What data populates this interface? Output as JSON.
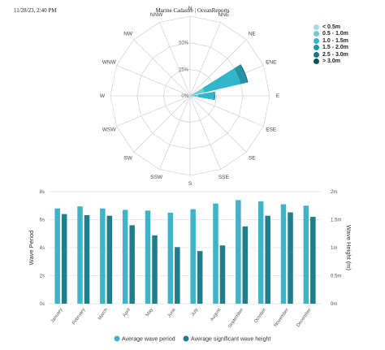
{
  "header": {
    "left": "11/28/23, 2:40 PM",
    "center": "Marine Cadastre | OceanReports"
  },
  "chart_data": [
    {
      "type": "wind-rose",
      "directions": [
        "N",
        "NNE",
        "NE",
        "ENE",
        "E",
        "ESE",
        "SE",
        "SSE",
        "S",
        "SSW",
        "SW",
        "WSW",
        "W",
        "WNW",
        "NW",
        "NNW"
      ],
      "radial_ticks": [
        "0%",
        "25%",
        "50%"
      ],
      "radial_max": 60,
      "legend": [
        {
          "label": "< 0.5m",
          "color": "#a6dbe2"
        },
        {
          "label": "0.5 - 1.0m",
          "color": "#6ccad8"
        },
        {
          "label": "1.0 - 1.5m",
          "color": "#33b5cc"
        },
        {
          "label": "1.5 - 2.0m",
          "color": "#2593a6"
        },
        {
          "label": "2.5 - 3.0m",
          "color": "#1b7383"
        },
        {
          "label": "> 3.0m",
          "color": "#114e5c"
        }
      ],
      "series": [
        {
          "name": "< 0.5m",
          "values": [
            0,
            0,
            0,
            1,
            1,
            0,
            0,
            0,
            0,
            0,
            0,
            0,
            0,
            0,
            0,
            0
          ]
        },
        {
          "name": "0.5 - 1.0m",
          "values": [
            0,
            0,
            0,
            10,
            5,
            0,
            0,
            0,
            0,
            0,
            0,
            0,
            0,
            0,
            0,
            0
          ]
        },
        {
          "name": "1.0 - 1.5m",
          "values": [
            0,
            0,
            0,
            28,
            12,
            0,
            0,
            0,
            0,
            0,
            0,
            0,
            0,
            0,
            0,
            0
          ]
        },
        {
          "name": "1.5 - 2.0m",
          "values": [
            0,
            0,
            0,
            5,
            1,
            0,
            0,
            0,
            0,
            0,
            0,
            0,
            0,
            0,
            0,
            0
          ]
        },
        {
          "name": "2.5 - 3.0m",
          "values": [
            0,
            0,
            0,
            1,
            0,
            0,
            0,
            0,
            0,
            0,
            0,
            0,
            0,
            0,
            0,
            0
          ]
        },
        {
          "name": "> 3.0m",
          "values": [
            0,
            0,
            0,
            0,
            0,
            0,
            0,
            0,
            0,
            0,
            0,
            0,
            0,
            0,
            0,
            0
          ]
        }
      ]
    },
    {
      "type": "bar",
      "categories": [
        "January",
        "February",
        "March",
        "April",
        "May",
        "June",
        "July",
        "August",
        "September",
        "October",
        "November",
        "December"
      ],
      "ylabel": "Wave Period",
      "ylabel_right": "Wave Height (m)",
      "ylim": [
        0,
        8
      ],
      "yticks": [
        "0s",
        "2s",
        "4s",
        "6s",
        "8s"
      ],
      "ylim_right": [
        0,
        2
      ],
      "yticks_right": [
        "0m",
        "0.5m",
        "1m",
        "1.5m",
        "2m"
      ],
      "legend_position": "bottom",
      "series": [
        {
          "name": "Average wave period",
          "axis": "left",
          "color": "#3fb3c7",
          "values": [
            6.8,
            6.95,
            6.8,
            6.7,
            6.65,
            6.5,
            6.75,
            7.15,
            7.4,
            7.3,
            7.1,
            7.0
          ]
        },
        {
          "name": "Average significant wave height",
          "axis": "right",
          "color": "#1f7d8c",
          "values": [
            1.6,
            1.58,
            1.57,
            1.4,
            1.22,
            1.01,
            0.94,
            1.04,
            1.38,
            1.57,
            1.63,
            1.55
          ]
        }
      ]
    }
  ]
}
